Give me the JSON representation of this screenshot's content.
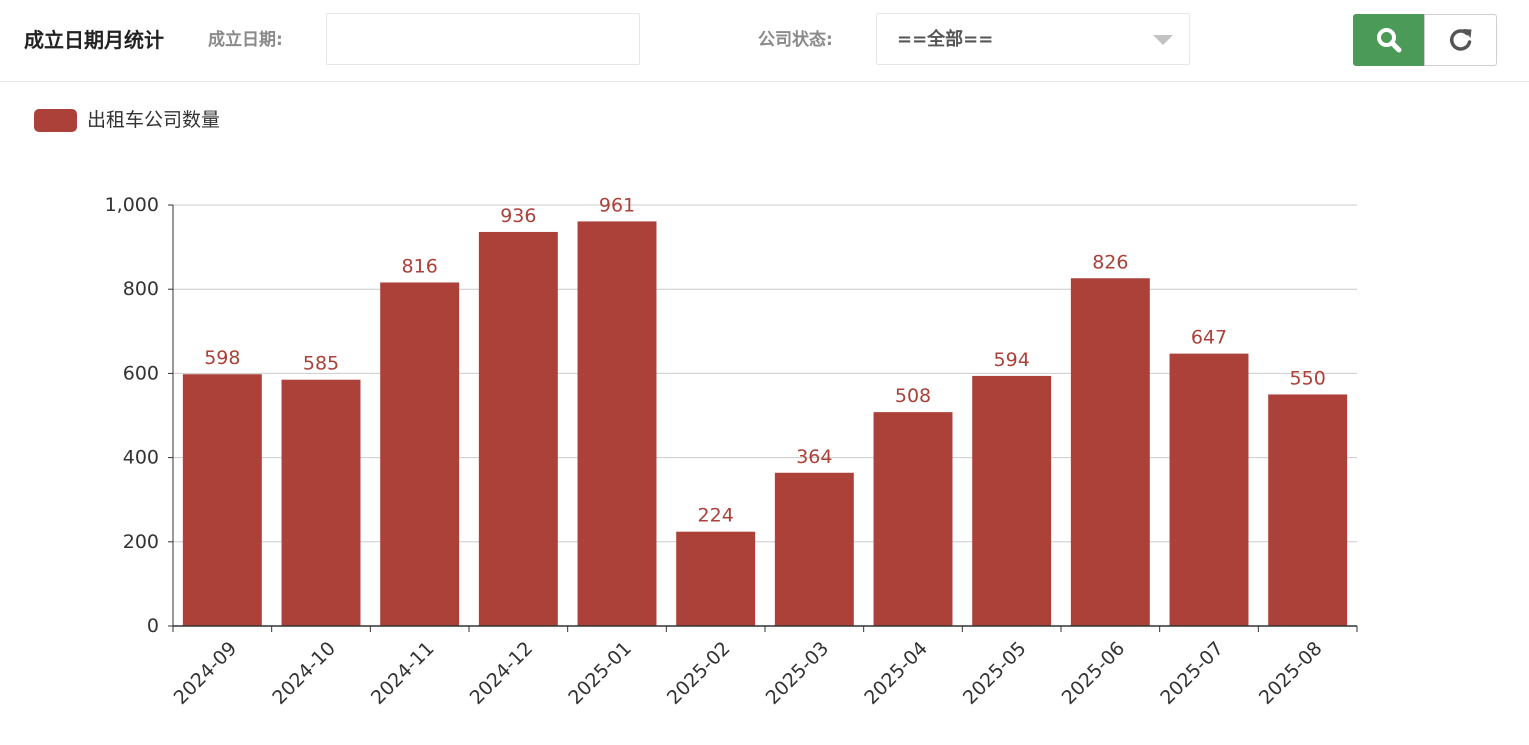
{
  "header": {
    "title": "成立日期月统计",
    "date_label": "成立日期:",
    "date_value": "",
    "status_label": "公司状态:",
    "status_selected": "==全部==",
    "search_icon": "search-icon",
    "refresh_icon": "refresh-icon",
    "accent_color": "#4c9a57"
  },
  "chart_data": {
    "type": "bar",
    "title": "",
    "xlabel": "",
    "ylabel": "",
    "categories": [
      "2024-09",
      "2024-10",
      "2024-11",
      "2024-12",
      "2025-01",
      "2025-02",
      "2025-03",
      "2025-04",
      "2025-05",
      "2025-06",
      "2025-07",
      "2025-08"
    ],
    "series": [
      {
        "name": "出租车公司数量",
        "values": [
          598,
          585,
          816,
          936,
          961,
          224,
          364,
          508,
          594,
          826,
          647,
          550
        ],
        "color": "#ab4139"
      }
    ],
    "ylim": [
      0,
      1000
    ],
    "yticks": [
      0,
      200,
      400,
      600,
      800,
      1000
    ],
    "ytick_labels": [
      "0",
      "200",
      "400",
      "600",
      "800",
      "1,000"
    ],
    "grid": true,
    "legend_position": "top-left",
    "data_labels": true
  }
}
